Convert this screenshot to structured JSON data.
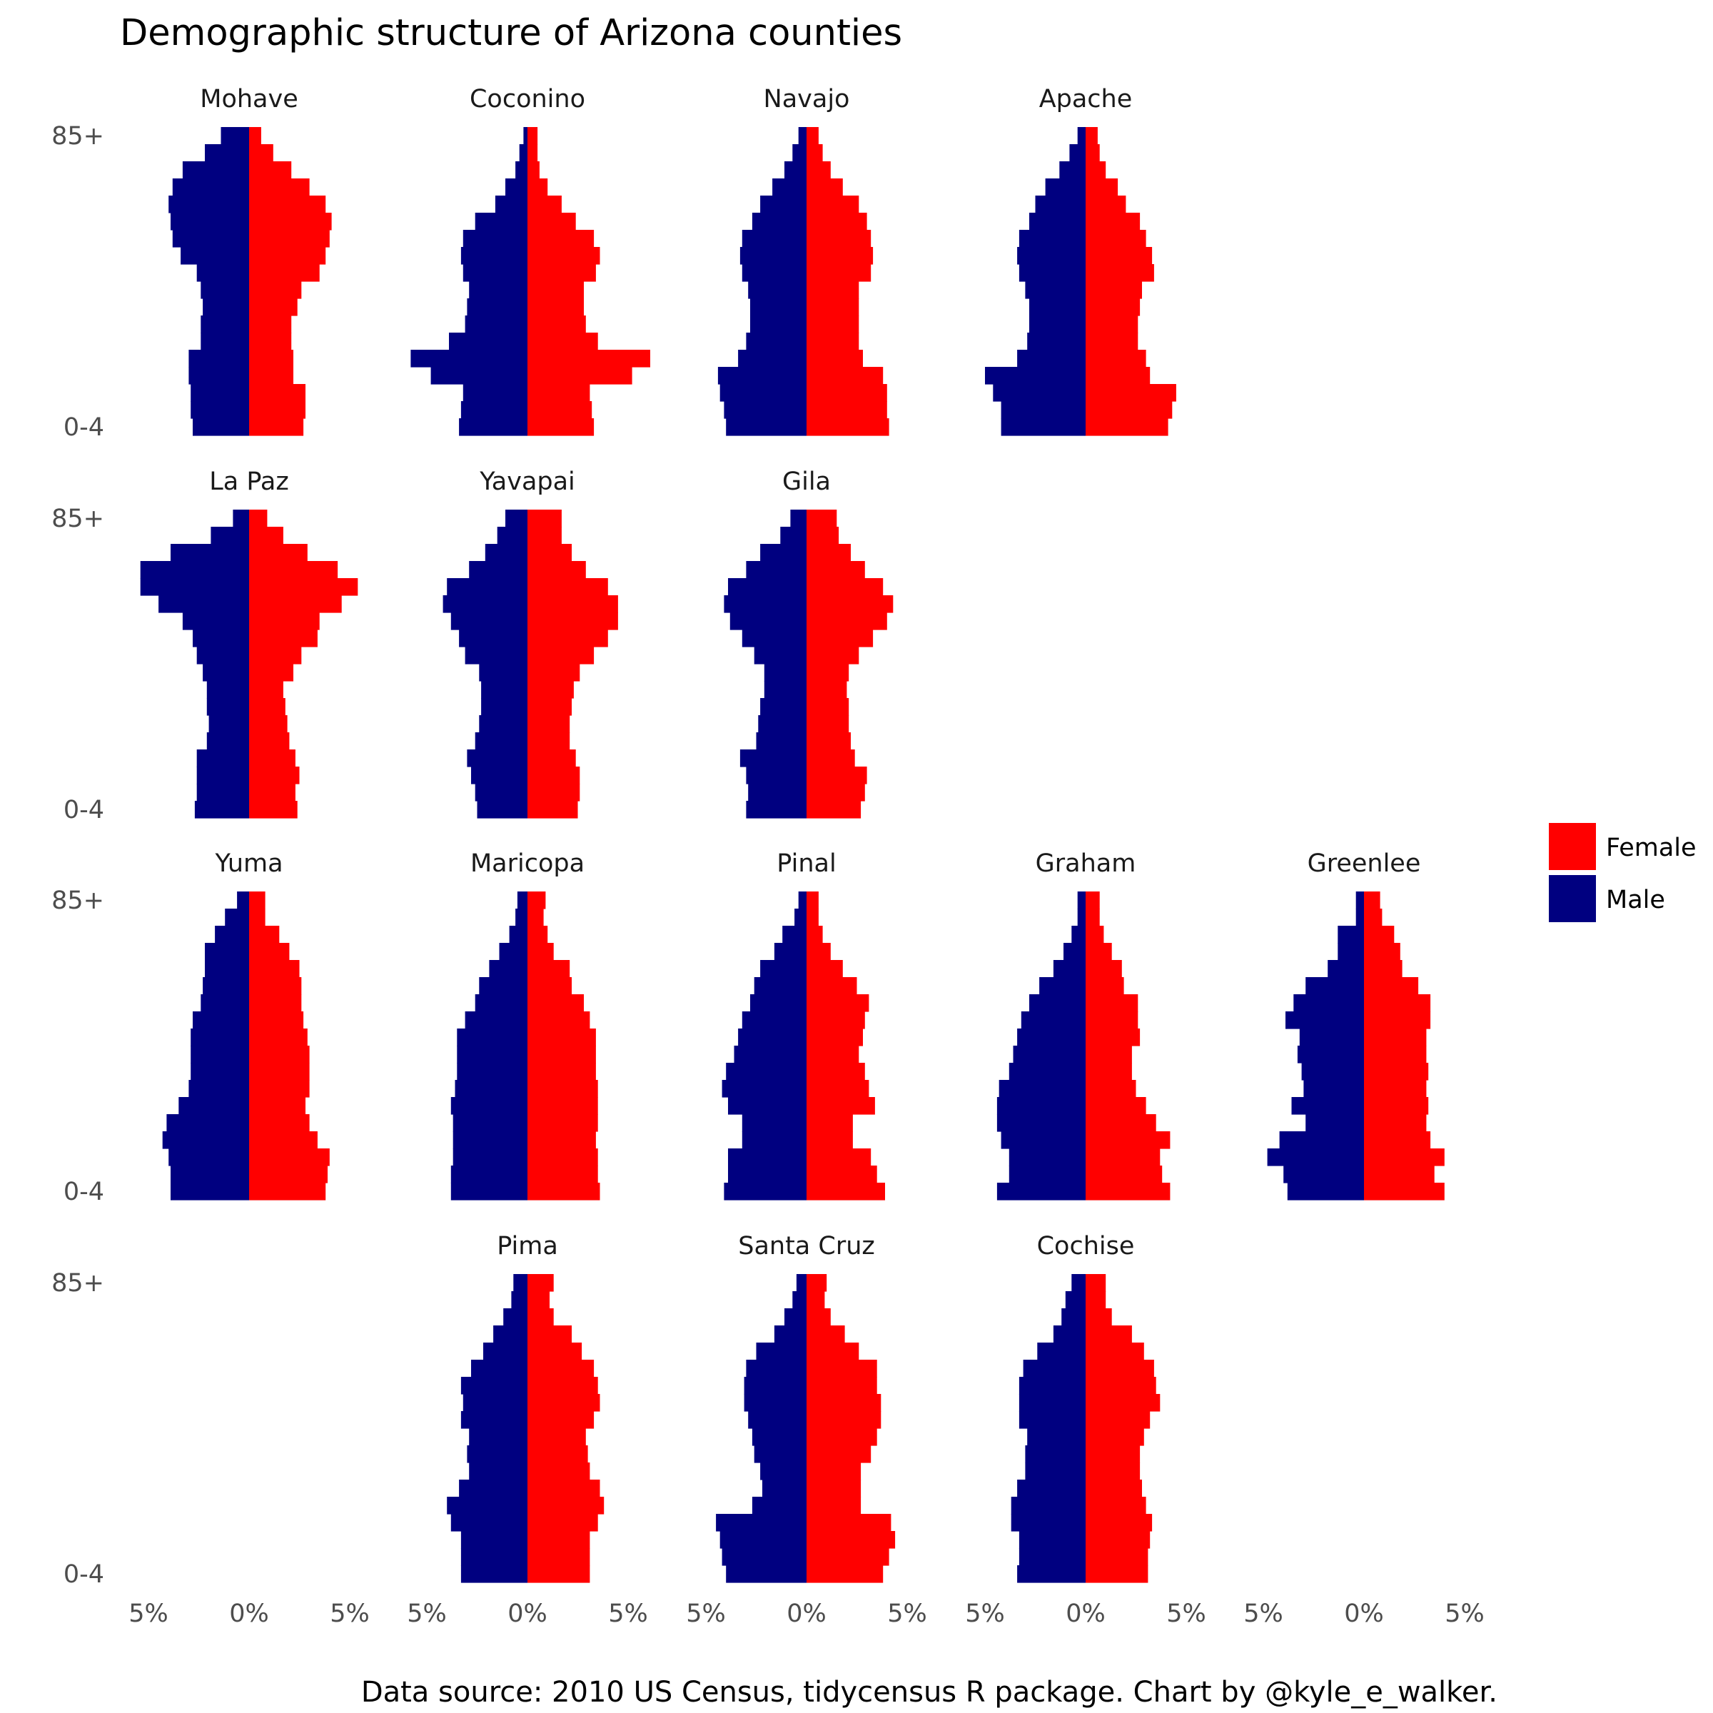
{
  "chart_data": {
    "type": "bar",
    "orientation": "horizontal",
    "layout": "population-pyramid-facets",
    "title": "Demographic structure of Arizona counties",
    "caption": "Data source: 2010 US Census, tidycensus R package.  Chart by @kyle_e_walker.",
    "y_tick_labels": [
      "0-4",
      "85+"
    ],
    "x_tick_labels": [
      "5%",
      "0%",
      "5%"
    ],
    "x_tick_values": [
      -5,
      0,
      5
    ],
    "xlim": [
      -5.5,
      5.5
    ],
    "unit": "percent of county population",
    "grid": false,
    "legend": {
      "position": "right",
      "entries": [
        {
          "label": "Female",
          "color": "#ff0000"
        },
        {
          "label": "Male",
          "color": "#000080"
        }
      ]
    },
    "age_groups_count": 18,
    "panels": [
      {
        "county": "Mohave",
        "row": 0,
        "col": 0,
        "male": [
          2.8,
          2.9,
          2.9,
          3.0,
          3.0,
          2.4,
          2.4,
          2.3,
          2.4,
          2.6,
          3.4,
          3.8,
          3.9,
          4.0,
          3.8,
          3.3,
          2.2,
          1.4
        ],
        "female": [
          2.7,
          2.8,
          2.8,
          2.2,
          2.2,
          2.1,
          2.1,
          2.4,
          2.6,
          3.5,
          3.8,
          4.0,
          4.1,
          3.8,
          3.0,
          2.1,
          1.2,
          0.6
        ]
      },
      {
        "county": "Coconino",
        "row": 0,
        "col": 1,
        "male": [
          3.4,
          3.3,
          3.2,
          4.8,
          5.8,
          3.9,
          3.1,
          3.0,
          2.9,
          3.2,
          3.3,
          3.2,
          2.6,
          1.6,
          1.1,
          0.6,
          0.4,
          0.2
        ],
        "female": [
          3.3,
          3.2,
          3.1,
          5.2,
          6.1,
          3.5,
          2.9,
          2.8,
          2.8,
          3.4,
          3.6,
          3.3,
          2.4,
          1.7,
          1.0,
          0.6,
          0.5,
          0.5
        ]
      },
      {
        "county": "Navajo",
        "row": 0,
        "col": 2,
        "male": [
          4.0,
          4.1,
          4.3,
          4.4,
          3.4,
          3.0,
          2.8,
          2.8,
          2.9,
          3.2,
          3.3,
          3.2,
          2.7,
          2.3,
          1.7,
          1.1,
          0.7,
          0.4
        ],
        "female": [
          4.1,
          4.0,
          4.0,
          3.8,
          2.8,
          2.6,
          2.6,
          2.6,
          2.6,
          3.2,
          3.3,
          3.2,
          3.0,
          2.6,
          1.8,
          1.2,
          0.8,
          0.6
        ]
      },
      {
        "county": "Apache",
        "row": 0,
        "col": 3,
        "male": [
          4.2,
          4.2,
          4.6,
          5.0,
          3.4,
          2.9,
          2.8,
          2.8,
          3.0,
          3.3,
          3.4,
          3.3,
          2.8,
          2.5,
          2.0,
          1.3,
          0.8,
          0.4
        ],
        "female": [
          4.1,
          4.3,
          4.5,
          3.2,
          3.0,
          2.6,
          2.6,
          2.7,
          2.8,
          3.4,
          3.3,
          3.0,
          2.7,
          2.0,
          1.6,
          1.0,
          0.7,
          0.6
        ]
      },
      {
        "county": "La Paz",
        "row": 1,
        "col": 0,
        "male": [
          2.7,
          2.6,
          2.6,
          2.6,
          2.1,
          2.0,
          2.1,
          2.1,
          2.3,
          2.6,
          2.8,
          3.3,
          4.5,
          5.4,
          5.4,
          3.9,
          1.9,
          0.8
        ],
        "female": [
          2.4,
          2.3,
          2.5,
          2.3,
          2.0,
          1.9,
          1.8,
          1.7,
          2.2,
          2.6,
          3.4,
          3.5,
          4.6,
          5.4,
          4.4,
          2.9,
          1.7,
          0.9
        ]
      },
      {
        "county": "Yavapai",
        "row": 1,
        "col": 1,
        "male": [
          2.5,
          2.6,
          2.8,
          3.0,
          2.6,
          2.4,
          2.3,
          2.3,
          2.4,
          3.1,
          3.4,
          3.8,
          4.2,
          4.0,
          2.9,
          2.1,
          1.5,
          1.1
        ],
        "female": [
          2.5,
          2.6,
          2.6,
          2.4,
          2.1,
          2.1,
          2.2,
          2.3,
          2.6,
          3.3,
          4.0,
          4.5,
          4.5,
          4.0,
          2.9,
          2.2,
          1.7,
          1.7
        ]
      },
      {
        "county": "Gila",
        "row": 1,
        "col": 2,
        "male": [
          3.0,
          2.9,
          3.0,
          3.3,
          2.5,
          2.4,
          2.3,
          2.1,
          2.1,
          2.6,
          3.2,
          3.8,
          4.1,
          3.9,
          3.0,
          2.3,
          1.3,
          0.8
        ],
        "female": [
          2.7,
          2.9,
          3.0,
          2.4,
          2.2,
          2.1,
          2.1,
          2.0,
          2.1,
          2.6,
          3.3,
          4.0,
          4.3,
          3.8,
          2.9,
          2.2,
          1.6,
          1.5
        ]
      },
      {
        "county": "Yuma",
        "row": 2,
        "col": 0,
        "male": [
          3.9,
          3.9,
          4.0,
          4.3,
          4.1,
          3.5,
          3.0,
          2.9,
          2.9,
          2.9,
          2.8,
          2.4,
          2.3,
          2.2,
          2.2,
          1.7,
          1.2,
          0.6
        ],
        "female": [
          3.8,
          3.9,
          4.0,
          3.4,
          3.0,
          2.8,
          3.0,
          3.0,
          3.0,
          2.9,
          2.7,
          2.6,
          2.6,
          2.5,
          2.0,
          1.5,
          0.8,
          0.8
        ]
      },
      {
        "county": "Maricopa",
        "row": 2,
        "col": 1,
        "male": [
          3.8,
          3.8,
          3.7,
          3.7,
          3.7,
          3.8,
          3.6,
          3.5,
          3.5,
          3.5,
          3.1,
          2.6,
          2.4,
          1.9,
          1.4,
          0.9,
          0.6,
          0.5
        ],
        "female": [
          3.6,
          3.5,
          3.5,
          3.4,
          3.5,
          3.5,
          3.5,
          3.4,
          3.4,
          3.4,
          3.1,
          2.8,
          2.2,
          2.1,
          1.3,
          1.0,
          0.8,
          0.9
        ]
      },
      {
        "county": "Pinal",
        "row": 2,
        "col": 2,
        "male": [
          4.1,
          3.9,
          3.9,
          3.2,
          3.2,
          3.9,
          4.2,
          4.0,
          3.6,
          3.4,
          3.2,
          2.8,
          2.6,
          2.3,
          1.6,
          1.2,
          0.6,
          0.4
        ],
        "female": [
          3.9,
          3.5,
          3.2,
          2.3,
          2.3,
          3.4,
          3.1,
          2.9,
          2.6,
          2.8,
          2.9,
          3.1,
          2.5,
          1.8,
          1.2,
          0.8,
          0.6,
          0.6
        ]
      },
      {
        "county": "Graham",
        "row": 2,
        "col": 3,
        "male": [
          4.4,
          3.8,
          3.8,
          4.2,
          4.4,
          4.4,
          4.3,
          3.8,
          3.6,
          3.4,
          3.2,
          2.8,
          2.3,
          1.6,
          1.1,
          0.7,
          0.4,
          0.4
        ],
        "female": [
          4.2,
          3.8,
          3.7,
          4.2,
          3.5,
          3.0,
          2.5,
          2.3,
          2.3,
          2.7,
          2.6,
          2.6,
          1.9,
          1.8,
          1.3,
          0.9,
          0.7,
          0.7
        ]
      },
      {
        "county": "Greenlee",
        "row": 2,
        "col": 4,
        "male": [
          3.8,
          4.0,
          4.8,
          4.2,
          2.9,
          3.6,
          3.0,
          3.1,
          3.3,
          3.2,
          3.9,
          3.5,
          2.9,
          1.8,
          1.3,
          1.3,
          0.4,
          0.4
        ],
        "female": [
          4.0,
          3.5,
          4.0,
          3.3,
          3.1,
          3.2,
          3.1,
          3.2,
          3.1,
          3.1,
          3.3,
          3.3,
          2.7,
          1.9,
          1.8,
          1.5,
          0.9,
          0.8
        ]
      },
      {
        "county": "Pima",
        "row": 3,
        "col": 1,
        "male": [
          3.3,
          3.3,
          3.3,
          3.8,
          4.0,
          3.4,
          2.9,
          3.0,
          2.9,
          3.3,
          3.2,
          3.3,
          2.8,
          2.2,
          1.7,
          1.2,
          0.8,
          0.7
        ],
        "female": [
          3.1,
          3.1,
          3.1,
          3.5,
          3.8,
          3.6,
          3.1,
          3.0,
          2.9,
          3.3,
          3.6,
          3.5,
          3.3,
          2.7,
          2.2,
          1.3,
          1.1,
          1.3
        ]
      },
      {
        "county": "Santa Cruz",
        "row": 3,
        "col": 2,
        "male": [
          4.0,
          4.2,
          4.3,
          4.5,
          2.7,
          2.2,
          2.3,
          2.6,
          2.7,
          2.9,
          3.1,
          3.1,
          3.0,
          2.5,
          1.6,
          1.1,
          0.7,
          0.5
        ],
        "female": [
          3.8,
          4.1,
          4.4,
          4.2,
          2.7,
          2.7,
          2.7,
          3.2,
          3.5,
          3.7,
          3.7,
          3.5,
          3.5,
          2.6,
          1.9,
          1.2,
          0.9,
          1.0
        ]
      },
      {
        "county": "Cochise",
        "row": 3,
        "col": 3,
        "male": [
          3.4,
          3.3,
          3.3,
          3.7,
          3.7,
          3.4,
          3.0,
          3.0,
          2.9,
          3.3,
          3.3,
          3.3,
          3.1,
          2.4,
          1.6,
          1.2,
          1.0,
          0.7
        ],
        "female": [
          3.1,
          3.1,
          3.2,
          3.3,
          3.0,
          2.8,
          2.7,
          2.7,
          2.9,
          3.2,
          3.7,
          3.5,
          3.4,
          2.9,
          2.3,
          1.3,
          1.0,
          1.0
        ]
      }
    ]
  }
}
